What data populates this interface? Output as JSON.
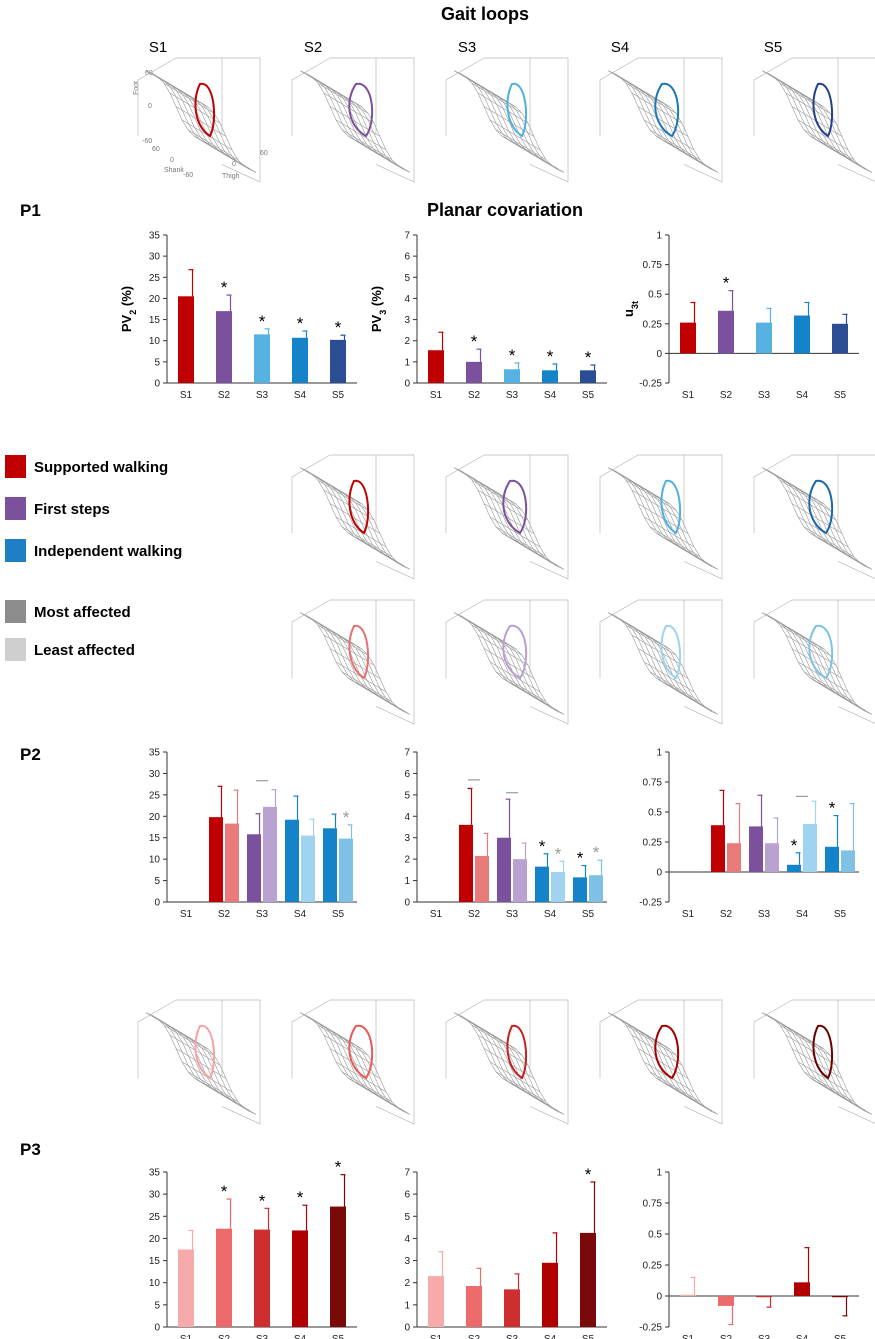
{
  "title": "Gait loops",
  "subtitle": "Planar covariation",
  "sessions": [
    "S1",
    "S2",
    "S3",
    "S4",
    "S5"
  ],
  "rows": [
    "P1",
    "P2",
    "P3"
  ],
  "loop_axes": {
    "foot": "Foot",
    "shank": "Shank",
    "thigh": "Thigh",
    "foot_ticks": [
      "60",
      "0",
      "-60"
    ],
    "shank_ticks": [
      "60",
      "0",
      "-60"
    ],
    "thigh_ticks": [
      "0",
      "60"
    ]
  },
  "legend": [
    {
      "label": "Supported walking",
      "color": "#c00000"
    },
    {
      "label": "First steps",
      "color": "#7b519d"
    },
    {
      "label": "Independent walking",
      "color": "#1f7fc5"
    },
    {
      "label": "Most affected",
      "color": "#8c8c8c"
    },
    {
      "label": "Least affected",
      "color": "#cfcfcf"
    }
  ],
  "loop_rows": [
    {
      "row": "P1",
      "loops": [
        {
          "session": "S1",
          "color": "#c00000"
        },
        {
          "session": "S2",
          "color": "#7b519d"
        },
        {
          "session": "S3",
          "color": "#4fb0e0"
        },
        {
          "session": "S4",
          "color": "#1a78b8"
        },
        {
          "session": "S5",
          "color": "#23408a"
        }
      ]
    },
    {
      "row": "P2 most affected",
      "loops": [
        {
          "session": "S2",
          "color": "#c00000"
        },
        {
          "session": "S3",
          "color": "#7b519d"
        },
        {
          "session": "S4",
          "color": "#4fb0e0"
        },
        {
          "session": "S5",
          "color": "#1a68a8"
        }
      ]
    },
    {
      "row": "P2 least affected",
      "loops": [
        {
          "session": "S2",
          "color": "#e87070"
        },
        {
          "session": "S3",
          "color": "#b89fd0"
        },
        {
          "session": "S4",
          "color": "#9cd3ee"
        },
        {
          "session": "S5",
          "color": "#7fc2e6"
        }
      ]
    },
    {
      "row": "P3",
      "loops": [
        {
          "session": "S1",
          "color": "#f5a3a3"
        },
        {
          "session": "S2",
          "color": "#e85a5a"
        },
        {
          "session": "S3",
          "color": "#c42020"
        },
        {
          "session": "S4",
          "color": "#a50000"
        },
        {
          "session": "S5",
          "color": "#6a0000"
        }
      ]
    }
  ],
  "chart_data": [
    {
      "id": "P1-PV2",
      "type": "bar",
      "row": "P1",
      "ylabel": "PV2 (%)",
      "ylim": [
        0,
        35
      ],
      "yticks": [
        0,
        5,
        10,
        15,
        20,
        25,
        30,
        35
      ],
      "categories": [
        "S1",
        "S2",
        "S3",
        "S4",
        "S5"
      ],
      "series": [
        {
          "name": "P1",
          "values": [
            20.5,
            17,
            11.5,
            10.7,
            10.2
          ],
          "errors": [
            6.3,
            3.8,
            1.3,
            1.6,
            1.1
          ],
          "colors": [
            "#c00000",
            "#7b519d",
            "#56b2e2",
            "#1583c9",
            "#2a4d94"
          ],
          "stars": [
            "",
            "*",
            "*",
            "*",
            "*"
          ]
        }
      ]
    },
    {
      "id": "P1-PV3",
      "type": "bar",
      "row": "P1",
      "ylabel": "PV3 (%)",
      "ylim": [
        0,
        7
      ],
      "yticks": [
        0,
        1,
        2,
        3,
        4,
        5,
        6,
        7
      ],
      "categories": [
        "S1",
        "S2",
        "S3",
        "S4",
        "S5"
      ],
      "series": [
        {
          "name": "P1",
          "values": [
            1.55,
            1.0,
            0.65,
            0.6,
            0.6
          ],
          "errors": [
            0.85,
            0.6,
            0.3,
            0.3,
            0.25
          ],
          "colors": [
            "#c00000",
            "#7b519d",
            "#56b2e2",
            "#1583c9",
            "#2a4d94"
          ],
          "stars": [
            "",
            "*",
            "*",
            "*",
            "*"
          ]
        }
      ]
    },
    {
      "id": "P1-u3t",
      "type": "bar",
      "row": "P1",
      "ylabel": "u3t",
      "ylim": [
        -0.25,
        1
      ],
      "yticks": [
        -0.25,
        0,
        0.25,
        0.5,
        0.75,
        1
      ],
      "categories": [
        "S1",
        "S2",
        "S3",
        "S4",
        "S5"
      ],
      "series": [
        {
          "name": "P1",
          "values": [
            0.26,
            0.36,
            0.26,
            0.32,
            0.25
          ],
          "errors": [
            0.17,
            0.17,
            0.12,
            0.11,
            0.08
          ],
          "colors": [
            "#c00000",
            "#7b519d",
            "#56b2e2",
            "#1583c9",
            "#2a4d94"
          ],
          "stars": [
            "",
            "*",
            "",
            "",
            ""
          ]
        }
      ]
    },
    {
      "id": "P2-PV2",
      "type": "bar",
      "row": "P2",
      "ylabel": "",
      "ylim": [
        0,
        35
      ],
      "yticks": [
        0,
        5,
        10,
        15,
        20,
        25,
        30,
        35
      ],
      "categories": [
        "S1",
        "S2",
        "S3",
        "S4",
        "S5"
      ],
      "series": [
        {
          "name": "Most affected",
          "values": [
            null,
            19.8,
            15.8,
            19.2,
            17.2
          ],
          "errors": [
            null,
            7.2,
            4.8,
            5.5,
            3.3
          ],
          "colors": [
            "#c00000",
            "#c00000",
            "#7b519d",
            "#1583c9",
            "#1583c9"
          ],
          "stars": [
            "",
            "",
            "",
            "",
            ""
          ]
        },
        {
          "name": "Least affected",
          "values": [
            null,
            18.3,
            22.2,
            15.5,
            14.8
          ],
          "errors": [
            null,
            7.8,
            4.0,
            3.8,
            3.2
          ],
          "colors": [
            "#e87a7a",
            "#e87a7a",
            "#b9a2d2",
            "#9fd3ef",
            "#7fc0e5"
          ],
          "stars": [
            "",
            "",
            "",
            "",
            "*"
          ]
        }
      ],
      "bars_brackets": [
        {
          "category": "S3",
          "value": 28.3
        }
      ]
    },
    {
      "id": "P2-PV3",
      "type": "bar",
      "row": "P2",
      "ylabel": "",
      "ylim": [
        0,
        7
      ],
      "yticks": [
        0,
        1,
        2,
        3,
        4,
        5,
        6,
        7
      ],
      "categories": [
        "S1",
        "S2",
        "S3",
        "S4",
        "S5"
      ],
      "series": [
        {
          "name": "Most affected",
          "values": [
            null,
            3.6,
            3.0,
            1.65,
            1.15
          ],
          "errors": [
            null,
            1.7,
            1.8,
            0.6,
            0.55
          ],
          "colors": [
            "#c00000",
            "#c00000",
            "#7b519d",
            "#1583c9",
            "#1583c9"
          ],
          "stars": [
            "",
            "",
            "",
            "*",
            "*"
          ]
        },
        {
          "name": "Least affected",
          "values": [
            null,
            2.15,
            2.0,
            1.4,
            1.25
          ],
          "errors": [
            null,
            1.05,
            0.75,
            0.5,
            0.7
          ],
          "colors": [
            "#e87a7a",
            "#e87a7a",
            "#b9a2d2",
            "#9fd3ef",
            "#7fc0e5"
          ],
          "stars": [
            "",
            "",
            "",
            "*",
            "*"
          ]
        }
      ],
      "bars_brackets": [
        {
          "category": "S2",
          "value": 5.7
        },
        {
          "category": "S3",
          "value": 5.1
        }
      ]
    },
    {
      "id": "P2-u3t",
      "type": "bar",
      "row": "P2",
      "ylabel": "",
      "ylim": [
        -0.25,
        1
      ],
      "yticks": [
        -0.25,
        0,
        0.25,
        0.5,
        0.75,
        1
      ],
      "categories": [
        "S1",
        "S2",
        "S3",
        "S4",
        "S5"
      ],
      "series": [
        {
          "name": "Most affected",
          "values": [
            null,
            0.39,
            0.38,
            0.06,
            0.21
          ],
          "errors": [
            null,
            0.29,
            0.26,
            0.1,
            0.26
          ],
          "colors": [
            "#c00000",
            "#c00000",
            "#7b519d",
            "#1583c9",
            "#1583c9"
          ],
          "stars": [
            "",
            "",
            "",
            "*",
            "*"
          ]
        },
        {
          "name": "Least affected",
          "values": [
            null,
            0.24,
            0.24,
            0.4,
            0.18
          ],
          "errors": [
            null,
            0.33,
            0.21,
            0.19,
            0.39
          ],
          "colors": [
            "#e87a7a",
            "#e87a7a",
            "#b9a2d2",
            "#9fd3ef",
            "#7fc0e5"
          ],
          "stars": [
            "",
            "",
            "",
            "",
            ""
          ]
        }
      ],
      "bars_brackets": [
        {
          "category": "S4",
          "value": 0.63
        }
      ]
    },
    {
      "id": "P3-PV2",
      "type": "bar",
      "row": "P3",
      "ylabel": "",
      "ylim": [
        0,
        35
      ],
      "yticks": [
        0,
        5,
        10,
        15,
        20,
        25,
        30,
        35
      ],
      "categories": [
        "S1",
        "S2",
        "S3",
        "S4",
        "S5"
      ],
      "series": [
        {
          "name": "P3",
          "values": [
            17.5,
            22.2,
            22.0,
            21.8,
            27.2
          ],
          "errors": [
            4.3,
            6.7,
            4.8,
            5.7,
            7.2
          ],
          "colors": [
            "#f7aaaa",
            "#ec6a6a",
            "#cf2e2e",
            "#b00000",
            "#7a0a0a"
          ],
          "stars": [
            "",
            "*",
            "*",
            "*",
            "*"
          ]
        }
      ]
    },
    {
      "id": "P3-PV3",
      "type": "bar",
      "row": "P3",
      "ylabel": "",
      "ylim": [
        0,
        7
      ],
      "yticks": [
        0,
        1,
        2,
        3,
        4,
        5,
        6,
        7
      ],
      "categories": [
        "S1",
        "S2",
        "S3",
        "S4",
        "S5"
      ],
      "series": [
        {
          "name": "P3",
          "values": [
            2.3,
            1.85,
            1.7,
            2.9,
            4.25
          ],
          "errors": [
            1.1,
            0.8,
            0.7,
            1.35,
            2.3
          ],
          "colors": [
            "#f7aaaa",
            "#ec6a6a",
            "#cf2e2e",
            "#b00000",
            "#7a0a0a"
          ],
          "stars": [
            "",
            "",
            "",
            "",
            "*"
          ]
        }
      ]
    },
    {
      "id": "P3-u3t",
      "type": "bar",
      "row": "P3",
      "ylabel": "",
      "ylim": [
        -0.25,
        1
      ],
      "yticks": [
        -0.25,
        0,
        0.25,
        0.5,
        0.75,
        1
      ],
      "categories": [
        "S1",
        "S2",
        "S3",
        "S4",
        "S5"
      ],
      "series": [
        {
          "name": "P3",
          "values": [
            0.01,
            -0.08,
            -0.01,
            0.11,
            -0.01
          ],
          "errors": [
            0.14,
            0.15,
            0.08,
            0.28,
            0.15
          ],
          "colors": [
            "#f7aaaa",
            "#ec6a6a",
            "#cf2e2e",
            "#b00000",
            "#7a0a0a"
          ],
          "stars": [
            "",
            "",
            "",
            "",
            ""
          ]
        }
      ]
    }
  ]
}
